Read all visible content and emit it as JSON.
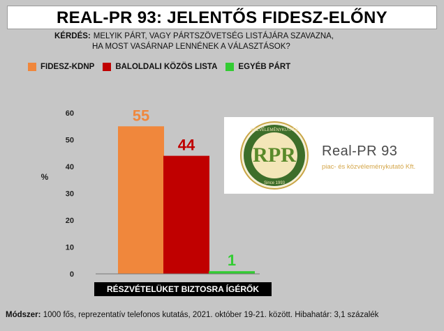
{
  "title": "REAL-PR 93: JELENTŐS FIDESZ-ELŐNY",
  "question": {
    "label": "KÉRDÉS:",
    "line1": "MELYIK PÁRT, VAGY PÁRTSZÖVETSÉG LISTÁJÁRA SZAVAZNA,",
    "line2": "HA MOST VASÁRNAP LENNÉNEK A VÁLASZTÁSOK?"
  },
  "legend": [
    {
      "name": "FIDESZ-KDNP",
      "color": "#f0873c"
    },
    {
      "name": "BALOLDALI KÖZÖS LISTA",
      "color": "#c00000"
    },
    {
      "name": "EGYÉB PÁRT",
      "color": "#33cc33"
    }
  ],
  "logo": {
    "name": "Real-PR 93",
    "tagline": "piac- és közvéleménykutató Kft.",
    "mark": "RPR",
    "ring_top": "KÖZVÉLEMÉNYKUTATÓ",
    "ring_bottom": "Since 1993"
  },
  "chart_data": {
    "type": "bar",
    "categories": [
      "RÉSZVÉTELÜKET BIZTOSRA ÍGÉRŐK"
    ],
    "series": [
      {
        "name": "FIDESZ-KDNP",
        "values": [
          55
        ],
        "color": "#f0873c"
      },
      {
        "name": "BALOLDALI KÖZÖS LISTA",
        "values": [
          44
        ],
        "color": "#c00000"
      },
      {
        "name": "EGYÉB PÁRT",
        "values": [
          1
        ],
        "color": "#33cc33"
      }
    ],
    "ylabel": "%",
    "ylim": [
      0,
      60
    ],
    "yticks": [
      0,
      10,
      20,
      30,
      40,
      50,
      60
    ],
    "grid": false,
    "legend_position": "top-left"
  },
  "footer": {
    "label": "Módszer:",
    "text": "1000 fős, reprezentatív telefonos kutatás, 2021. október 19-21. között. Hibahatár:   3,1 százalék"
  }
}
